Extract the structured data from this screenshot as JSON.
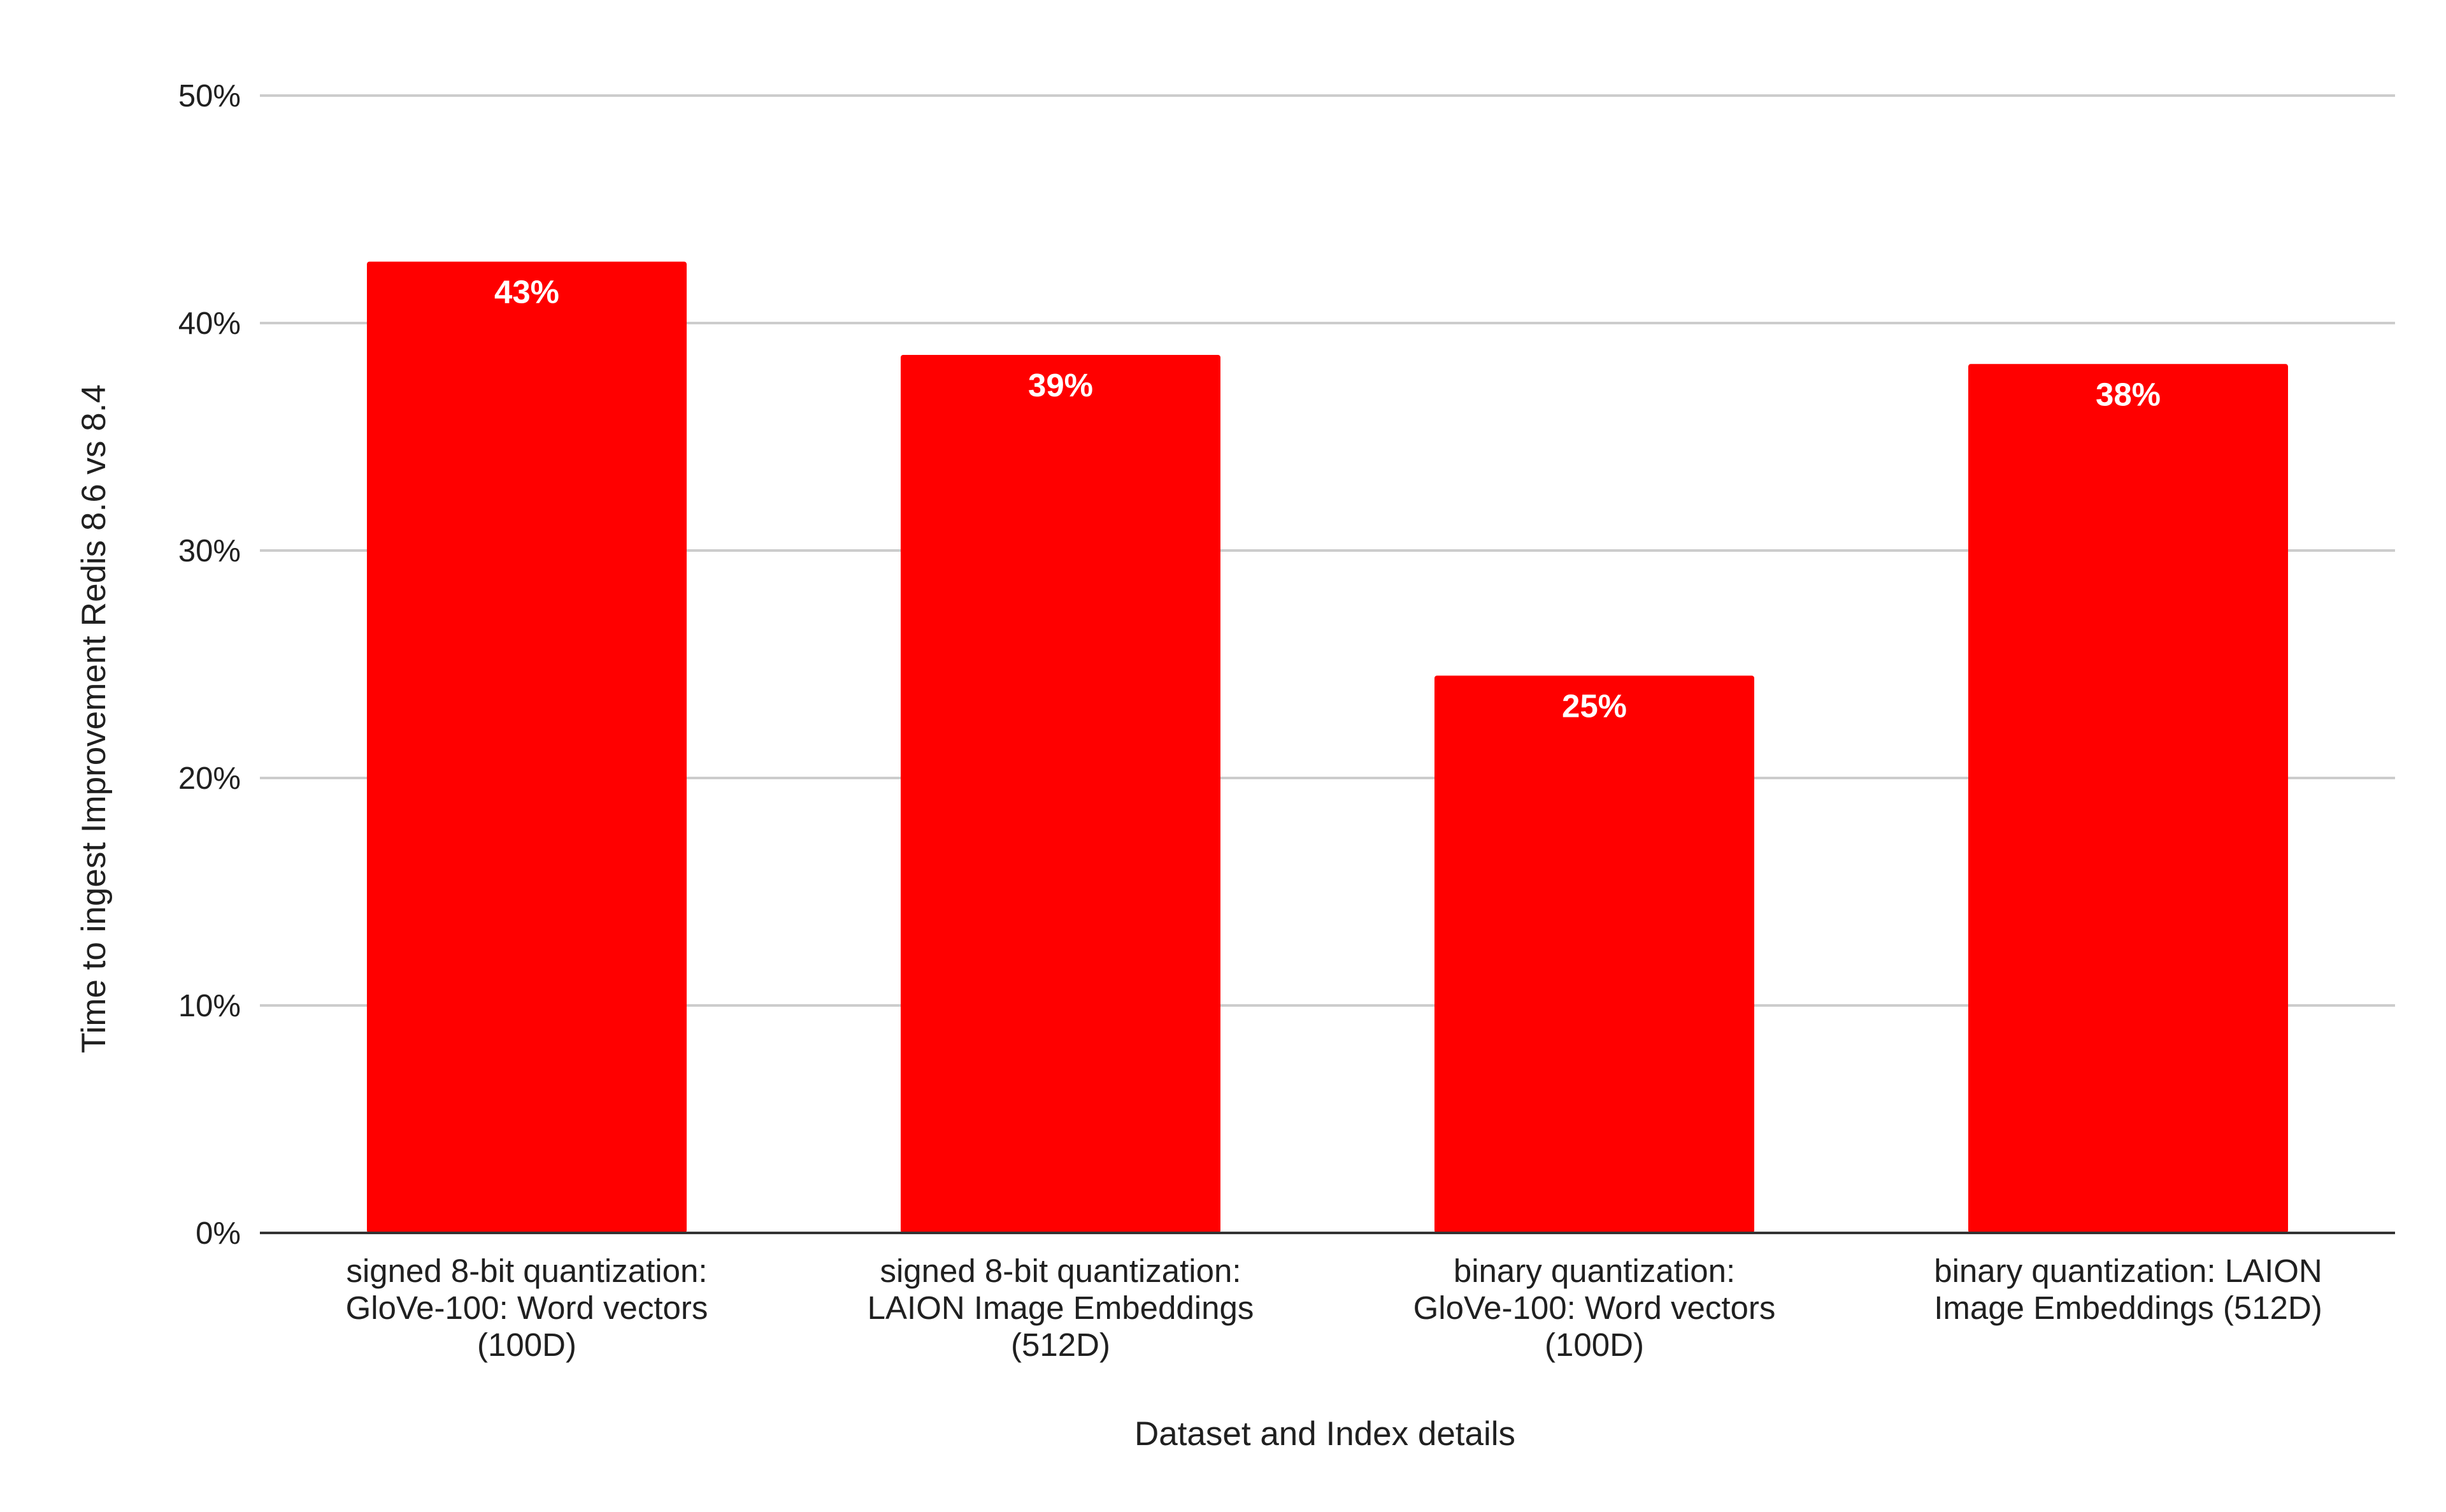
{
  "chart_data": {
    "type": "bar",
    "categories": [
      [
        "signed 8-bit quantization:",
        "GloVe-100: Word vectors",
        "(100D)"
      ],
      [
        "signed 8-bit quantization:",
        "LAION Image Embeddings",
        "(512D)"
      ],
      [
        "binary quantization:",
        "GloVe-100: Word vectors",
        "(100D)"
      ],
      [
        "binary quantization: LAION",
        "Image Embeddings (512D)"
      ]
    ],
    "values": [
      42.7,
      38.6,
      24.5,
      38.2
    ],
    "data_labels": [
      "43%",
      "39%",
      "25%",
      "38%"
    ],
    "title": "",
    "xlabel": "Dataset and Index details",
    "ylabel": "Time to ingest Improvement Redis 8.6 vs 8.4",
    "ylim": [
      0,
      50
    ],
    "y_ticks": [
      0,
      10,
      20,
      30,
      40,
      50
    ],
    "y_tick_labels": [
      "0%",
      "10%",
      "20%",
      "30%",
      "40%",
      "50%"
    ],
    "grid": true,
    "legend": "none",
    "colors": {
      "bar": "#ff0000",
      "grid": "#cccccc",
      "axis": "#333333",
      "text": "#202020",
      "data_label": "#ffffff"
    }
  }
}
